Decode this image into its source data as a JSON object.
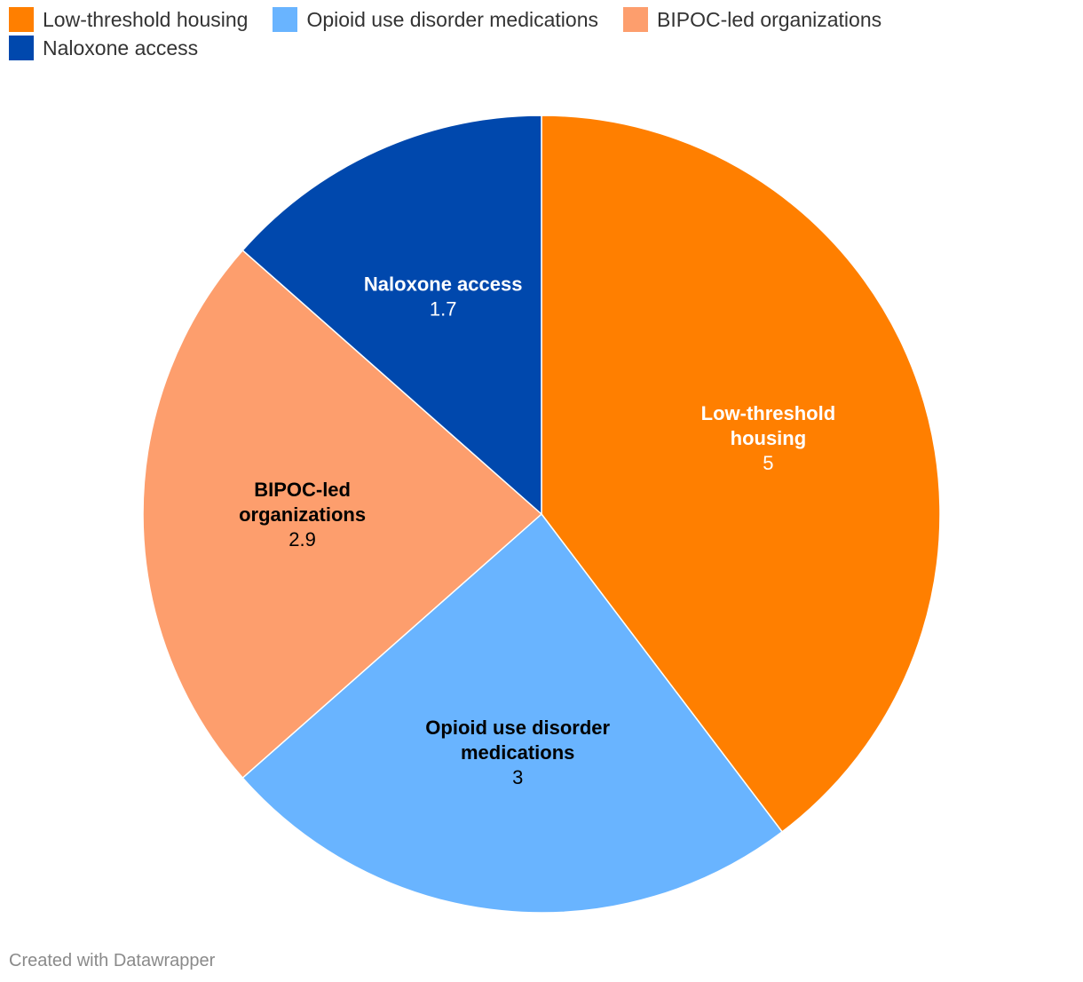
{
  "chart_data": {
    "type": "pie",
    "categories": [
      "Low-threshold housing",
      "Opioid use disorder medications",
      "BIPOC-led organizations",
      "Naloxone access"
    ],
    "values": [
      5,
      3,
      2.9,
      1.7
    ],
    "value_labels": [
      "5",
      "3",
      "2.9",
      "1.7"
    ],
    "colors": [
      "#ff7f00",
      "#69b4ff",
      "#fd9e6d",
      "#0048ad"
    ],
    "label_colors": [
      "#ffffff",
      "#000000",
      "#000000",
      "#ffffff"
    ],
    "label_lines": [
      [
        "Low-threshold",
        "housing"
      ],
      [
        "Opioid use disorder",
        "medications"
      ],
      [
        "BIPOC-led",
        "organizations"
      ],
      [
        "Naloxone access"
      ]
    ],
    "start": "12 o'clock",
    "direction": "clockwise",
    "legend_position": "top-left"
  },
  "legend": {
    "items": [
      {
        "label": "Low-threshold housing",
        "color": "#ff7f00"
      },
      {
        "label": "Opioid use disorder medications",
        "color": "#69b4ff"
      },
      {
        "label": "BIPOC-led organizations",
        "color": "#fd9e6d"
      },
      {
        "label": "Naloxone access",
        "color": "#0048ad"
      }
    ]
  },
  "footer": {
    "credit": "Created with Datawrapper"
  }
}
